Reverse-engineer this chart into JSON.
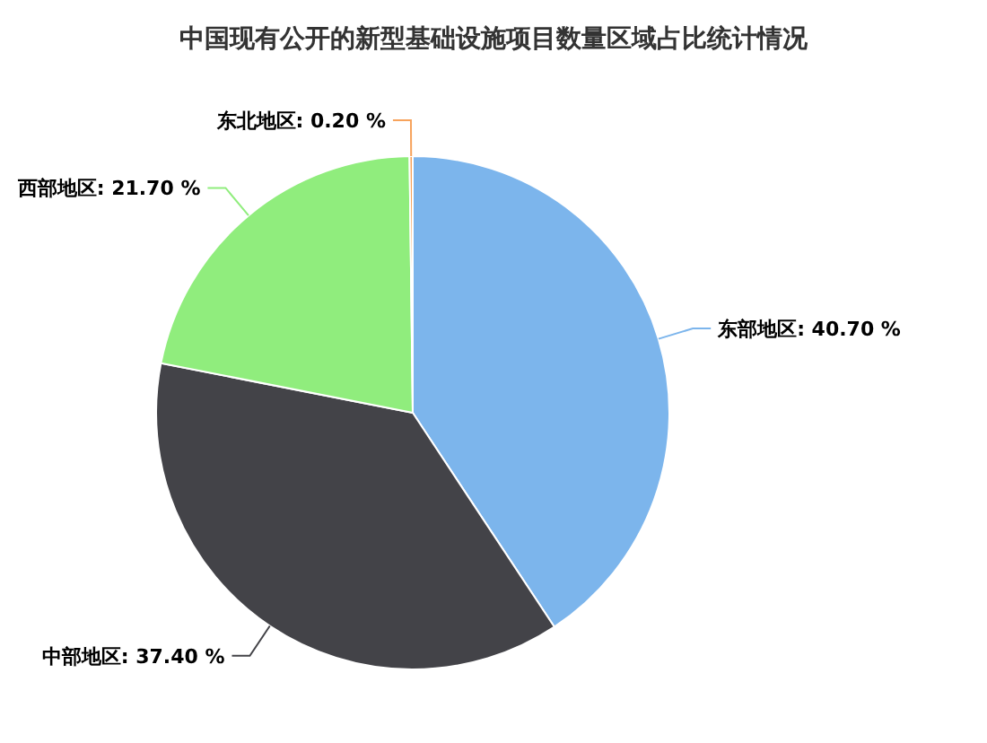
{
  "chart_data": {
    "type": "pie",
    "title": "中国现有公开的新型基础设施项目数量区域占比统计情况",
    "categories": [
      "东部地区",
      "中部地区",
      "西部地区",
      "东北地区"
    ],
    "values": [
      40.7,
      37.4,
      21.7,
      0.2
    ],
    "value_labels": [
      "40.70 %",
      "37.40 %",
      "21.70 %",
      "0.20 %"
    ],
    "colors": [
      "#7cb5ec",
      "#434348",
      "#90ed7d",
      "#f7a35c"
    ]
  }
}
